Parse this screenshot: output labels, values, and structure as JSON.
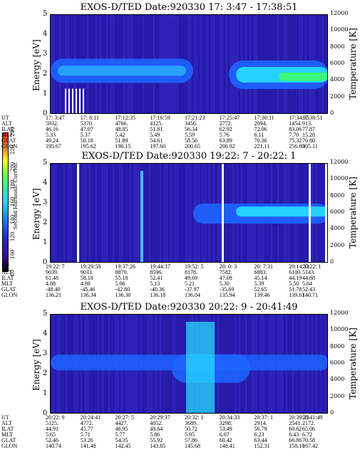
{
  "colorbar": {
    "label": "Second Harmonic Current",
    "ticks": [
      "80",
      "100",
      "120",
      "140",
      "160",
      "180",
      "200",
      "220",
      "240"
    ]
  },
  "palette": {
    "background": "#2a1fb0",
    "band_blue": "#1e64ff",
    "band_cyan": "#24e6ff",
    "band_green": "#3cff5a",
    "white": "#ffffff"
  },
  "row_labels": [
    "UT",
    "ALT",
    "ILAT",
    "MLT",
    "GLAT",
    "GLON"
  ],
  "axes": {
    "y_left_label": "Energy [eV]",
    "y_right_label": "Temperature [K]",
    "y_left_ticks": [
      "5",
      "4",
      "3",
      "2",
      "1",
      "0"
    ],
    "y_right_ticks": [
      "12000",
      "10000",
      "8000",
      "6000",
      "4000",
      "2000",
      "0"
    ]
  },
  "chart_data": [
    {
      "type": "heatmap",
      "title": "EXOS-D/TED   Date:920330  17: 3:47 - 17:38:51",
      "xlabel": "",
      "ylabel": "Energy [eV]",
      "y2label": "Temperature [K]",
      "ylim": [
        0,
        5
      ],
      "y2lim": [
        0,
        12000
      ],
      "columns": [
        [
          "17: 3:47",
          "5932.",
          "46.16",
          "5.33",
          "49.24",
          "195.67"
        ],
        [
          "17: 8:11",
          "5370.",
          "47.07",
          "5.37",
          "50.18",
          "195.62"
        ],
        [
          "17:12:35",
          "4766.",
          "48.85",
          "5.42",
          "51.89",
          "196.15"
        ],
        [
          "17:16:59",
          "4125.",
          "51.81",
          "5.49",
          "54.61",
          "197.60"
        ],
        [
          "17:21:23",
          "3456.",
          "56.34",
          "5.59",
          "58.56",
          "200.65"
        ],
        [
          "17:25:47",
          "2772.",
          "62.92",
          "5.76",
          "63.89",
          "206.92"
        ],
        [
          "17:30:11",
          "2094.",
          "72.06",
          "6.11",
          "70.36",
          "221.11"
        ],
        [
          "17:34:35",
          "1454.",
          "83.06",
          "7.70",
          "75.32",
          "256.80"
        ],
        [
          "17:38:51",
          "913.",
          "77.87",
          "15.28",
          "70.80",
          "305.11"
        ]
      ]
    },
    {
      "type": "heatmap",
      "title": "EXOS-D/TED   Date:920330  19:22: 7 - 20:22: 1",
      "xlabel": "",
      "ylabel": "Energy [eV]",
      "y2label": "Temperature [K]",
      "ylim": [
        0,
        5
      ],
      "y2lim": [
        0,
        12000
      ],
      "columns": [
        [
          "19:22: 7",
          "9039.",
          "61.48",
          "4.88",
          "-48.40",
          "136.21"
        ],
        [
          "19:29:58",
          "9033.",
          "58.18",
          "4.98",
          "-45.46",
          "136.34"
        ],
        [
          "19:37:26",
          "8870.",
          "55.18",
          "5.06",
          "-42.80",
          "136.30"
        ],
        [
          "19:44:37",
          "8596.",
          "52.41",
          "5.13",
          "-40.36",
          "136.18"
        ],
        [
          "19:52: 5",
          "8178.",
          "49.69",
          "5.21",
          "-37.97",
          "136.04"
        ],
        [
          "20: 0: 3",
          "7582.",
          "47.08",
          "5.30",
          "-35.69",
          "135.94"
        ],
        [
          "20: 7:31",
          "6883.",
          "45.14",
          "5.39",
          "52.65",
          "139.46"
        ],
        [
          "20:14:33",
          "6100.",
          "44.19",
          "5.50",
          "51.78",
          "139.61"
        ],
        [
          "20:22: 1",
          "5143.",
          "44.88",
          "5.64",
          "52.43",
          "140.71"
        ]
      ]
    },
    {
      "type": "heatmap",
      "title": "EXOS-D/TED   Date:920330  20:22: 9 - 20:41:49",
      "xlabel": "",
      "ylabel": "Energy [eV]",
      "y2label": "Temperature [K]",
      "ylim": [
        0,
        5
      ],
      "y2lim": [
        0,
        12000
      ],
      "columns": [
        [
          "20:22: 9",
          "5125.",
          "44.91",
          "5.65",
          "52.46",
          "140.74"
        ],
        [
          "20:24:41",
          "4772.",
          "45.77",
          "5.71",
          "53.26",
          "141.48"
        ],
        [
          "20:27: 5",
          "4427.",
          "46.95",
          "5.77",
          "54.35",
          "142.45"
        ],
        [
          "20:29:37",
          "4052.",
          "48.64",
          "5.86",
          "55.92",
          "143.85"
        ],
        [
          "20:32: 1",
          "3689.",
          "50.72",
          "5.95",
          "57.86",
          "145.68"
        ],
        [
          "20:34:33",
          "3298.",
          "53.49",
          "6.07",
          "60.42",
          "148.41"
        ],
        [
          "20:37: 1",
          "2914.",
          "56.79",
          "6.23",
          "63.44",
          "152.31"
        ],
        [
          "20:39:25",
          "2541.",
          "60.62",
          "6.43",
          "66.86",
          "158.10"
        ],
        [
          "20:41:49",
          "2172.",
          "65.06",
          "6.72",
          "70.58",
          "167.42"
        ]
      ]
    }
  ]
}
